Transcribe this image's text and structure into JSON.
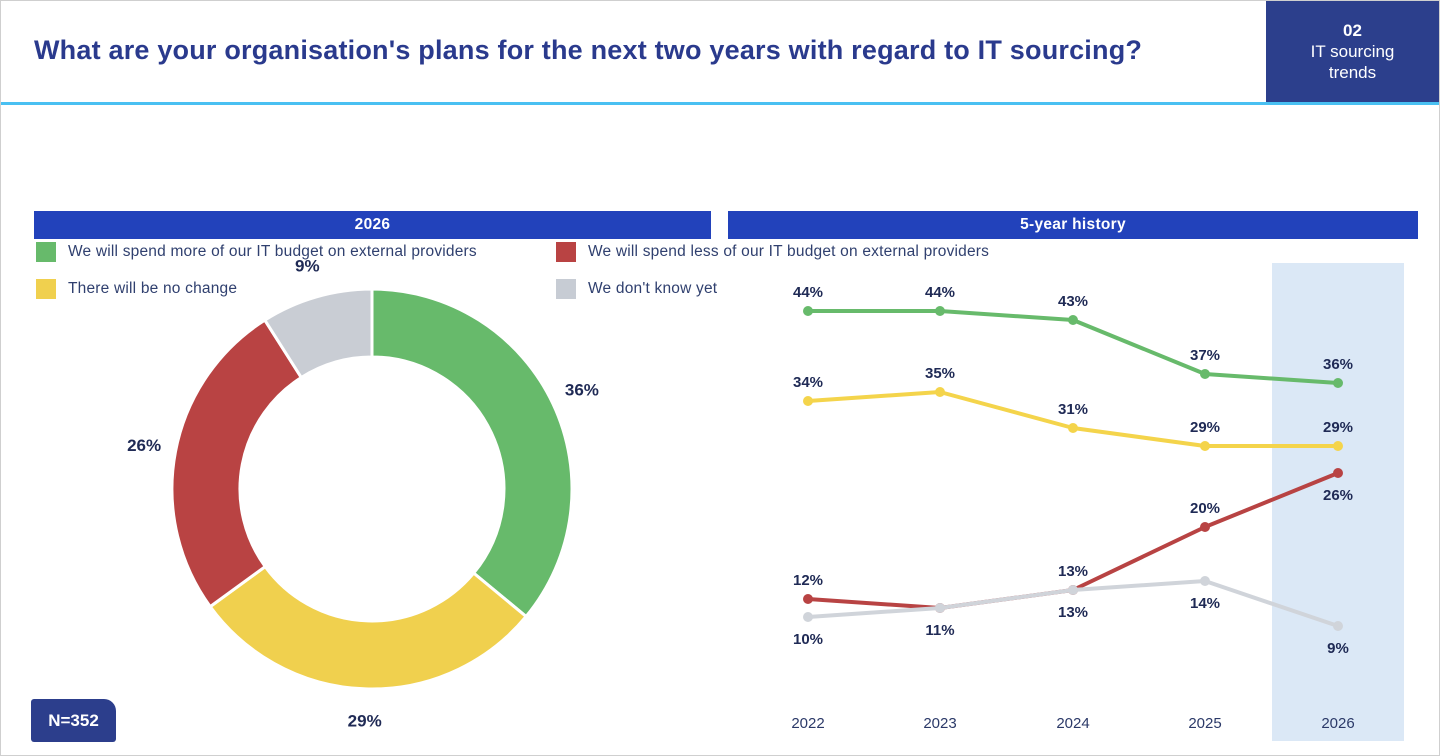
{
  "header": {
    "title": "What are your organisation's plans for the next two years with regard to IT sourcing?",
    "corner": {
      "number": "02",
      "label": "IT sourcing trends"
    }
  },
  "legend": {
    "items": [
      {
        "label": "We will spend more of our IT budget on external providers",
        "color": "#67ba6b"
      },
      {
        "label": "We will spend less of our IT budget on external providers",
        "color": "#b94343"
      },
      {
        "label": "There will be no change",
        "color": "#f0d04e"
      },
      {
        "label": "We don't know yet",
        "color": "#c7ccd4"
      }
    ]
  },
  "panels": {
    "donut": {
      "header": "2026",
      "n_label": "N=352"
    },
    "history": {
      "header": "5-year history"
    }
  },
  "chart_data": [
    {
      "type": "pie",
      "subtype": "donut",
      "title": "2026",
      "categories": [
        "We will spend more of our IT budget on external providers",
        "There will be no change",
        "We will spend less of our IT budget on external providers",
        "We don't know yet"
      ],
      "values": [
        36,
        29,
        26,
        9
      ],
      "colors": [
        "#67ba6b",
        "#f0d04e",
        "#b94343",
        "#c9cdd4"
      ],
      "unit": "%",
      "n": 352,
      "start_angle_deg": 0,
      "direction": "clockwise"
    },
    {
      "type": "line",
      "title": "5-year history",
      "x": [
        "2022",
        "2023",
        "2024",
        "2025",
        "2026"
      ],
      "series": [
        {
          "name": "We will spend more of our IT budget on external providers",
          "color": "#67ba6b",
          "values": [
            44,
            44,
            43,
            37,
            36
          ],
          "label_pos": [
            "above",
            "above",
            "above",
            "above",
            "above"
          ]
        },
        {
          "name": "There will be no change",
          "color": "#f4d44b",
          "values": [
            34,
            35,
            31,
            29,
            29
          ],
          "label_pos": [
            "above",
            "above",
            "above",
            "above",
            "above"
          ]
        },
        {
          "name": "We will spend less of our IT budget on external providers",
          "color": "#b84343",
          "values": [
            12,
            11,
            13,
            20,
            26
          ],
          "label_pos": [
            "above",
            null,
            "above",
            "above",
            "below"
          ]
        },
        {
          "name": "We don't know yet",
          "color": "#d0d4da",
          "values": [
            10,
            11,
            13,
            14,
            9
          ],
          "label_pos": [
            "below",
            "below",
            "below",
            "below",
            "below"
          ]
        }
      ],
      "unit": "%",
      "ylim": [
        0,
        50
      ],
      "grid": false,
      "legend_position": "top-of-slide",
      "highlight_x": "2026",
      "highlight_color": "#dbe8f6"
    }
  ]
}
